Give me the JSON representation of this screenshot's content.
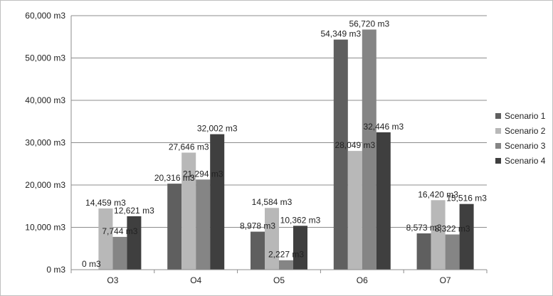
{
  "chart_data": {
    "type": "bar",
    "categories": [
      "O3",
      "O4",
      "O5",
      "O6",
      "O7"
    ],
    "series": [
      {
        "name": "Scenario 1",
        "color": "#5f5f5f",
        "values": [
          0,
          20316,
          8978,
          54349,
          8573
        ],
        "labels": [
          "0 m3",
          "20,316 m3",
          "8,978 m3",
          "54,349 m3",
          "8,573 m3"
        ]
      },
      {
        "name": "Scenario 2",
        "color": "#b8b8b8",
        "values": [
          14459,
          27646,
          14584,
          28049,
          16420
        ],
        "labels": [
          "14,459 m3",
          "27,646 m3",
          "14,584 m3",
          "28,049 m3",
          "16,420 m3"
        ]
      },
      {
        "name": "Scenario 3",
        "color": "#858585",
        "values": [
          7744,
          21294,
          2227,
          56720,
          8322
        ],
        "labels": [
          "7,744 m3",
          "21,294 m3",
          "2,227 m3",
          "56,720 m3",
          "8,322 m3"
        ]
      },
      {
        "name": "Scenario 4",
        "color": "#3f3f3f",
        "values": [
          12621,
          32002,
          10362,
          32446,
          15516
        ],
        "labels": [
          "12,621 m3",
          "32,002 m3",
          "10,362 m3",
          "32,446 m3",
          "15,516 m3"
        ]
      }
    ],
    "yticks": [
      "0 m3",
      "10,000 m3",
      "20,000 m3",
      "30,000 m3",
      "40,000 m3",
      "50,000 m3",
      "60,000 m3"
    ],
    "ylim": [
      0,
      60000
    ],
    "title": "",
    "xlabel": "",
    "ylabel": "",
    "grid": "horizontal",
    "legend_position": "right"
  }
}
